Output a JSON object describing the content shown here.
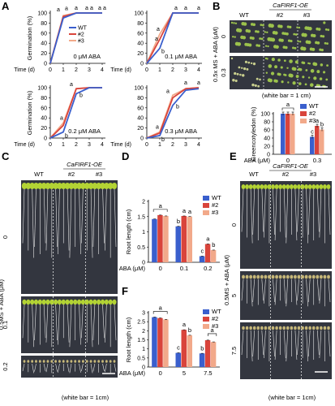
{
  "panel_letters": [
    "A",
    "B",
    "C",
    "D",
    "E",
    "F"
  ],
  "colors": {
    "wt": "#3a5fcd",
    "l2": "#d9443b",
    "l3": "#f2a98a",
    "plate": "#33363f",
    "seedling": "#a6c34a"
  },
  "germination_axes": {
    "ylabel": "Germination (%)",
    "xlabel": "Time (d)",
    "yticks": [
      "0",
      "20",
      "40",
      "60",
      "80",
      "100"
    ],
    "xticks": [
      "0",
      "1",
      "2",
      "3",
      "4"
    ]
  },
  "legend": {
    "wt": "WT",
    "l2": "#2",
    "l3": "#3"
  },
  "chart_data": [
    {
      "type": "line",
      "panel": "A",
      "annotation": "0 μM ABA",
      "x": [
        0,
        1,
        2,
        3,
        4
      ],
      "ylim": [
        0,
        100
      ],
      "series": [
        {
          "name": "WT",
          "values": [
            0,
            90,
            100,
            100,
            100
          ]
        },
        {
          "name": "#2",
          "values": [
            0,
            93,
            100,
            100,
            100
          ]
        },
        {
          "name": "#3",
          "values": [
            0,
            95,
            100,
            100,
            100
          ]
        }
      ],
      "sig_labels": [
        "a",
        "a",
        "a",
        "a",
        "a",
        "a",
        "a"
      ]
    },
    {
      "type": "line",
      "panel": "A",
      "annotation": "0.1 μM ABA",
      "x": [
        0,
        1,
        2,
        3,
        4
      ],
      "ylim": [
        0,
        100
      ],
      "series": [
        {
          "name": "WT",
          "values": [
            0,
            30,
            100,
            100,
            100
          ]
        },
        {
          "name": "#2",
          "values": [
            0,
            48,
            100,
            100,
            100
          ]
        },
        {
          "name": "#3",
          "values": [
            0,
            58,
            100,
            100,
            100
          ]
        }
      ],
      "sig_labels": [
        "a",
        "a",
        "b",
        "a",
        "a",
        "a"
      ]
    },
    {
      "type": "line",
      "panel": "A",
      "annotation": "0.2 μM ABA",
      "x": [
        0,
        1,
        2,
        3,
        4
      ],
      "ylim": [
        0,
        100
      ],
      "series": [
        {
          "name": "WT",
          "values": [
            0,
            12,
            88,
            100,
            100
          ]
        },
        {
          "name": "#2",
          "values": [
            0,
            25,
            98,
            100,
            100
          ]
        },
        {
          "name": "#3",
          "values": [
            0,
            30,
            98,
            100,
            100
          ]
        }
      ],
      "sig_labels": [
        "a",
        "b",
        "a",
        "b"
      ]
    },
    {
      "type": "line",
      "panel": "A",
      "annotation": "0.3 μM ABA",
      "x": [
        0,
        1,
        2,
        3,
        4
      ],
      "ylim": [
        0,
        100
      ],
      "series": [
        {
          "name": "WT",
          "values": [
            0,
            5,
            65,
            95,
            98
          ]
        },
        {
          "name": "#2",
          "values": [
            0,
            10,
            80,
            98,
            100
          ]
        },
        {
          "name": "#3",
          "values": [
            0,
            12,
            85,
            98,
            100
          ]
        }
      ],
      "sig_labels": [
        "a",
        "b",
        "a",
        "b",
        "a",
        "a"
      ]
    },
    {
      "type": "bar",
      "panel": "B",
      "categories": [
        "0",
        "0.3"
      ],
      "xlabel": "ABA (μM)",
      "ylabel": "Greencotyledon (%)",
      "ylim": [
        0,
        100
      ],
      "yticks": [
        "0",
        "20",
        "40",
        "60",
        "80",
        "100"
      ],
      "series": [
        {
          "name": "WT",
          "values": [
            100,
            43
          ]
        },
        {
          "name": "#2",
          "values": [
            100,
            70
          ]
        },
        {
          "name": "#3",
          "values": [
            100,
            61
          ]
        }
      ],
      "sig_labels": [
        [
          "a"
        ],
        [
          "c",
          "a",
          "b"
        ]
      ]
    },
    {
      "type": "bar",
      "panel": "D",
      "categories": [
        "0",
        "0.1",
        "0.2"
      ],
      "xlabel": "ABA (μM)",
      "ylabel": "Root length (cm)",
      "ylim": [
        0,
        2
      ],
      "yticks": [
        "0",
        "0.5",
        "1",
        "1.5",
        "2"
      ],
      "series": [
        {
          "name": "WT",
          "values": [
            1.42,
            1.18,
            0.2
          ]
        },
        {
          "name": "#2",
          "values": [
            1.55,
            1.52,
            0.6
          ]
        },
        {
          "name": "#3",
          "values": [
            1.52,
            1.5,
            0.4
          ]
        }
      ],
      "sig_labels": [
        [
          "a"
        ],
        [
          "b",
          "a",
          "a"
        ],
        [
          "c",
          "a",
          "b"
        ]
      ]
    },
    {
      "type": "bar",
      "panel": "F",
      "categories": [
        "0",
        "5",
        "7.5"
      ],
      "xlabel": "ABA (μM)",
      "ylabel": "Root length (cm)",
      "ylim": [
        0,
        3
      ],
      "yticks": [
        "0",
        "0.5",
        "1",
        "1.5",
        "2",
        "2.5",
        "3"
      ],
      "series": [
        {
          "name": "WT",
          "values": [
            2.75,
            0.78,
            0.75
          ]
        },
        {
          "name": "#2",
          "values": [
            2.7,
            2.05,
            1.48
          ]
        },
        {
          "name": "#3",
          "values": [
            2.62,
            1.75,
            1.38
          ]
        }
      ],
      "sig_labels": [
        [
          "a"
        ],
        [
          "c",
          "a",
          "b"
        ],
        [
          "b",
          "a"
        ]
      ]
    }
  ],
  "panel_B_photo": {
    "header": [
      "WT",
      "#2",
      "#3"
    ],
    "oe_label": "CaFIRF1-OE",
    "rows": [
      "0",
      "0.3"
    ],
    "side_label": "0.5x MS + ABA (μM)",
    "scale_note": "(white bar = 1 cm)"
  },
  "panel_C_photo": {
    "header": [
      "WT",
      "#2",
      "#3"
    ],
    "oe_label": "CaFIRF1-OE",
    "rows": [
      "0",
      "0.1",
      "0.2"
    ],
    "side_label": "0.5MS + ABA (μM)",
    "scale_note": "(white bar = 1cm)"
  },
  "panel_E_photo": {
    "header": [
      "WT",
      "#2",
      "#3"
    ],
    "oe_label": "CaFIRF1-OE",
    "rows": [
      "0",
      "5",
      "7.5"
    ],
    "side_label": "0.5MS + ABA (μM)",
    "scale_note": "(white bar = 1cm)"
  }
}
